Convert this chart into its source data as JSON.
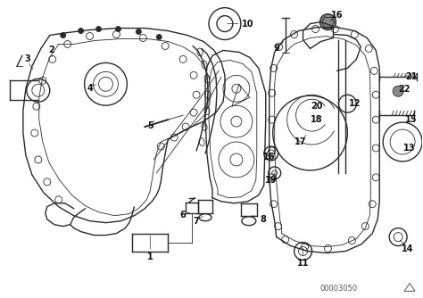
{
  "bg_color": "#ffffff",
  "line_color": "#2a2a2a",
  "fig_width": 4.74,
  "fig_height": 3.34,
  "dpi": 100,
  "footer_code": "00003050"
}
